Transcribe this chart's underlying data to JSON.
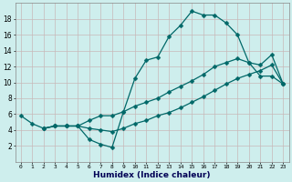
{
  "xlabel": "Humidex (Indice chaleur)",
  "bg_color": "#ceeeed",
  "grid_color": "#c8b8b8",
  "line_color": "#006868",
  "xlim": [
    -0.5,
    23.5
  ],
  "ylim": [
    0,
    20
  ],
  "yticks": [
    2,
    4,
    6,
    8,
    10,
    12,
    14,
    16,
    18
  ],
  "xticks": [
    0,
    1,
    2,
    3,
    4,
    5,
    6,
    7,
    8,
    9,
    10,
    11,
    12,
    13,
    14,
    15,
    16,
    17,
    18,
    19,
    20,
    21,
    22,
    23
  ],
  "line_top_x": [
    0,
    1,
    2,
    3,
    4,
    5,
    6,
    7,
    8,
    9,
    10,
    11,
    12,
    13,
    14,
    15,
    16,
    17,
    18,
    19,
    20,
    21,
    22,
    23
  ],
  "line_top_y": [
    5.8,
    4.8,
    4.2,
    4.5,
    4.5,
    4.5,
    2.8,
    2.2,
    1.8,
    6.3,
    10.5,
    12.8,
    13.2,
    15.8,
    17.2,
    19.0,
    18.5,
    18.5,
    17.5,
    16.0,
    12.5,
    10.8,
    10.8,
    9.8
  ],
  "line_mid_x": [
    2,
    3,
    4,
    5,
    6,
    7,
    8,
    9,
    10,
    11,
    12,
    13,
    14,
    15,
    16,
    17,
    18,
    19,
    20,
    21,
    22,
    23
  ],
  "line_mid_y": [
    4.2,
    4.5,
    4.5,
    4.5,
    5.2,
    5.8,
    5.8,
    6.3,
    7.0,
    7.5,
    8.0,
    8.8,
    9.5,
    10.2,
    11.0,
    12.0,
    12.5,
    13.0,
    12.5,
    12.2,
    13.5,
    9.8
  ],
  "line_bot_x": [
    2,
    3,
    4,
    5,
    6,
    7,
    8,
    9,
    10,
    11,
    12,
    13,
    14,
    15,
    16,
    17,
    18,
    19,
    20,
    21,
    22,
    23
  ],
  "line_bot_y": [
    4.2,
    4.5,
    4.5,
    4.5,
    4.2,
    4.0,
    3.8,
    4.2,
    4.8,
    5.2,
    5.8,
    6.2,
    6.8,
    7.5,
    8.2,
    9.0,
    9.8,
    10.5,
    11.0,
    11.5,
    12.2,
    9.8
  ]
}
